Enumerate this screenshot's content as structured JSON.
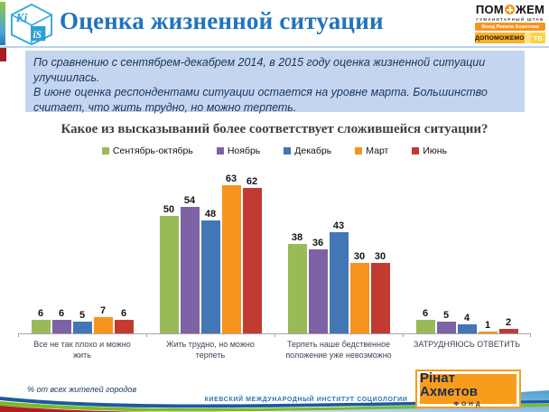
{
  "header": {
    "title": "Оценка жизненной ситуации",
    "kiis": {
      "top": "Ki",
      "bottom": "iS"
    },
    "pomozhem": {
      "brand_left": "ПОМ",
      "brand_right": "ЖЕМ",
      "tagline": "ГУМАНИТАРНЫЙ ШТАБ",
      "fund_banner": "Фонд Рината Ахметова",
      "strip_label": "ДОПОМОЖЕМО",
      "strip_tv": "ТВ"
    }
  },
  "summary": {
    "line1": "По сравнению с сентябрем-декабрем 2014, в 2015 году оценка жизненной ситуации улучшилась.",
    "line2": "В июне оценка респондентами ситуации остается на уровне марта. Большинство считает, что жить трудно, но можно терпеть."
  },
  "chart_data": {
    "type": "bar",
    "title": "Какое из высказываний более соответствует сложившейся ситуации?",
    "categories": [
      "Все не так плохо и можно жить",
      "Жить трудно, но можно терпеть",
      "Терпеть наше бедственное положение уже невозможно",
      "ЗАТРУДНЯЮСЬ ОТВЕТИТЬ"
    ],
    "series": [
      {
        "name": "Сентябрь-октябрь",
        "color": "#9ABA58",
        "values": [
          6,
          50,
          38,
          6
        ]
      },
      {
        "name": "Ноябрь",
        "color": "#7E62A6",
        "values": [
          6,
          54,
          36,
          5
        ]
      },
      {
        "name": "Декабрь",
        "color": "#4276B4",
        "values": [
          5,
          48,
          43,
          4
        ]
      },
      {
        "name": "Март",
        "color": "#F7941E",
        "values": [
          7,
          63,
          30,
          1
        ]
      },
      {
        "name": "Июнь",
        "color": "#C23B33",
        "values": [
          6,
          62,
          30,
          2
        ]
      }
    ],
    "ylim": [
      0,
      70
    ],
    "data_labels": true,
    "grid": false,
    "legend_position": "top",
    "unit": "%"
  },
  "footer": {
    "note": "% от всех жителей городов",
    "institute": "КИЕВСКИЙ МЕЖДУНАРОДНЫЙ ИНСТИТУТ СОЦИОЛОГИИ",
    "fund": {
      "name": "Рінат Ахметов",
      "sub": "ФОНД"
    }
  }
}
